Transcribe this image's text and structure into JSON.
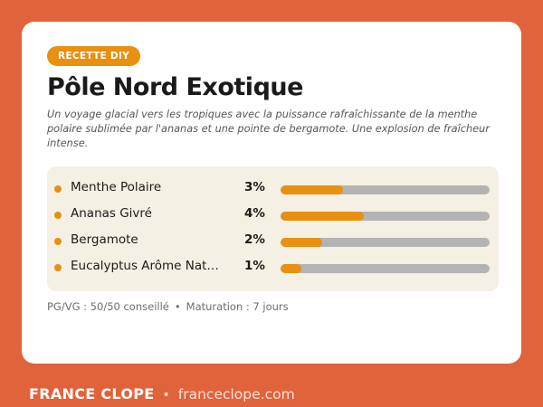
{
  "card": {
    "badge": "RECETTE DIY",
    "title": "Pôle Nord Exotique",
    "description": "Un voyage glacial vers les tropiques avec la puissance rafraîchissante de la menthe polaire sublimée par l'ananas et une pointe de bergamote. Une explosion de fraîcheur intense.",
    "ingredients": [
      {
        "name": "Menthe Polaire",
        "percent": "3%",
        "level": 0.3
      },
      {
        "name": "Ananas Givré",
        "percent": "4%",
        "level": 0.4
      },
      {
        "name": "Bergamote",
        "percent": "2%",
        "level": 0.2
      },
      {
        "name": "Eucalyptus Arôme Nat…",
        "percent": "1%",
        "level": 0.1
      }
    ],
    "meta": {
      "ratio": "PG/VG : 50/50 conseillé",
      "separator": "•",
      "maturation": "Maturation : 7 jours"
    }
  },
  "footer": {
    "brand": "FRANCE CLOPE",
    "separator": "•",
    "site": "franceclope.com"
  },
  "colors": {
    "background": "#e0633c",
    "accent": "#e8900f",
    "track": "#b3b3b3",
    "panel": "#f5f0e4"
  }
}
